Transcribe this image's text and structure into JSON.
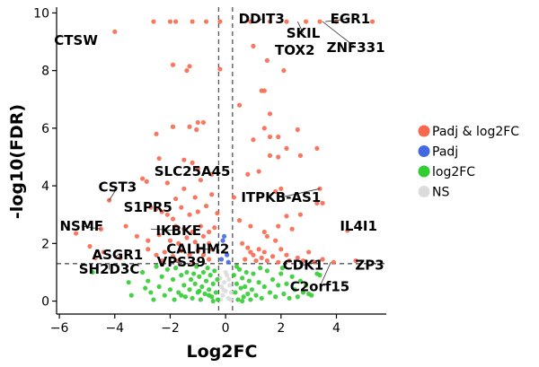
{
  "chart_data": {
    "type": "scatter",
    "xlabel": "Log2FC",
    "ylabel": "-log10(FDR)",
    "xlim": [
      -6.1,
      5.8
    ],
    "ylim": [
      -0.45,
      10.2
    ],
    "xticks": [
      -6,
      -4,
      -2,
      0,
      2,
      4
    ],
    "yticks": [
      0,
      2,
      4,
      6,
      8,
      10
    ],
    "tick_labels_x": [
      "−6",
      "−4",
      "−2",
      "0",
      "2",
      "4"
    ],
    "tick_labels_y": [
      "0",
      "2",
      "4",
      "6",
      "8",
      "10"
    ],
    "thresholds": {
      "log2fc": [
        -0.25,
        0.25
      ],
      "fdr": 1.3
    },
    "legend": {
      "placement": "right",
      "entries": [
        {
          "name": "Padj & log2FC",
          "color": "#F8684F"
        },
        {
          "name": "Padj",
          "color": "#4169E1"
        },
        {
          "name": "log2FC",
          "color": "#32CD32"
        },
        {
          "name": "NS",
          "color": "#DCDCDC"
        }
      ]
    },
    "series": [
      {
        "name": "Padj & log2FC",
        "color": "#F8684F",
        "points": [
          [
            -4.0,
            9.35
          ],
          [
            -2.6,
            9.7
          ],
          [
            -2.0,
            9.7
          ],
          [
            -1.8,
            9.7
          ],
          [
            -1.2,
            9.7
          ],
          [
            -0.7,
            9.7
          ],
          [
            -0.2,
            9.7
          ],
          [
            0.9,
            9.7
          ],
          [
            1.6,
            9.7
          ],
          [
            2.2,
            9.7
          ],
          [
            2.9,
            9.7
          ],
          [
            3.4,
            9.7
          ],
          [
            4.0,
            9.7
          ],
          [
            5.3,
            9.7
          ],
          [
            1.0,
            8.85
          ],
          [
            1.5,
            8.35
          ],
          [
            2.1,
            8.0
          ],
          [
            -1.9,
            8.2
          ],
          [
            -1.3,
            8.15
          ],
          [
            -1.4,
            8.0
          ],
          [
            -0.2,
            8.05
          ],
          [
            1.3,
            7.3
          ],
          [
            1.4,
            7.3
          ],
          [
            0.5,
            6.8
          ],
          [
            1.6,
            6.5
          ],
          [
            -1.0,
            6.2
          ],
          [
            -0.8,
            6.2
          ],
          [
            -1.9,
            6.05
          ],
          [
            -1.3,
            6.05
          ],
          [
            -1.05,
            5.95
          ],
          [
            -2.5,
            5.8
          ],
          [
            1.4,
            6.0
          ],
          [
            1.6,
            5.7
          ],
          [
            1.9,
            5.7
          ],
          [
            2.6,
            5.95
          ],
          [
            1.0,
            5.6
          ],
          [
            2.2,
            5.3
          ],
          [
            3.3,
            5.3
          ],
          [
            -2.4,
            4.95
          ],
          [
            -1.5,
            4.9
          ],
          [
            -1.2,
            4.8
          ],
          [
            -1.0,
            4.6
          ],
          [
            -0.9,
            4.2
          ],
          [
            -0.5,
            4.4
          ],
          [
            0.8,
            4.4
          ],
          [
            1.2,
            4.5
          ],
          [
            1.6,
            5.05
          ],
          [
            1.9,
            5.0
          ],
          [
            2.7,
            5.05
          ],
          [
            -3.0,
            4.25
          ],
          [
            -2.85,
            4.15
          ],
          [
            -2.1,
            4.1
          ],
          [
            -1.5,
            3.9
          ],
          [
            -1.1,
            3.6
          ],
          [
            -1.8,
            3.55
          ],
          [
            -0.5,
            3.7
          ],
          [
            0.3,
            3.6
          ],
          [
            1.8,
            3.8
          ],
          [
            2.0,
            3.9
          ],
          [
            3.4,
            3.9
          ],
          [
            3.3,
            3.4
          ],
          [
            3.5,
            3.4
          ],
          [
            -4.2,
            3.5
          ],
          [
            -2.7,
            3.25
          ],
          [
            -2.5,
            3.2
          ],
          [
            -2.3,
            3.1
          ],
          [
            -2.1,
            3.0
          ],
          [
            -1.9,
            2.85
          ],
          [
            -1.6,
            3.25
          ],
          [
            -1.3,
            3.0
          ],
          [
            -1.0,
            3.1
          ],
          [
            -0.7,
            3.3
          ],
          [
            -0.3,
            3.05
          ],
          [
            -1.8,
            2.6
          ],
          [
            -1.5,
            2.5
          ],
          [
            -1.2,
            2.4
          ],
          [
            -0.9,
            2.6
          ],
          [
            -0.6,
            2.4
          ],
          [
            -0.4,
            2.55
          ],
          [
            0.5,
            2.8
          ],
          [
            0.9,
            2.6
          ],
          [
            1.4,
            2.4
          ],
          [
            1.9,
            2.6
          ],
          [
            2.2,
            2.95
          ],
          [
            2.4,
            2.5
          ],
          [
            2.7,
            3.0
          ],
          [
            1.5,
            2.25
          ],
          [
            -4.5,
            2.5
          ],
          [
            -5.4,
            2.35
          ],
          [
            -3.6,
            2.6
          ],
          [
            -3.2,
            2.25
          ],
          [
            -2.8,
            2.1
          ],
          [
            -2.4,
            2.3
          ],
          [
            -2.0,
            2.1
          ],
          [
            -1.7,
            2.0
          ],
          [
            -1.4,
            2.2
          ],
          [
            -1.1,
            2.05
          ],
          [
            -0.8,
            2.25
          ],
          [
            -0.6,
            2.0
          ],
          [
            -0.5,
            1.8
          ],
          [
            -2.8,
            1.8
          ],
          [
            -2.5,
            1.6
          ],
          [
            -2.2,
            1.7
          ],
          [
            -1.9,
            1.55
          ],
          [
            -1.6,
            1.75
          ],
          [
            -1.3,
            1.6
          ],
          [
            -1.0,
            1.75
          ],
          [
            -0.8,
            1.6
          ],
          [
            -0.6,
            1.45
          ],
          [
            -2.3,
            1.4
          ],
          [
            -1.7,
            1.4
          ],
          [
            -1.2,
            1.35
          ],
          [
            -3.8,
            1.5
          ],
          [
            -4.4,
            1.7
          ],
          [
            -4.9,
            1.9
          ],
          [
            -4.7,
            1.5
          ],
          [
            0.6,
            2.0
          ],
          [
            0.8,
            1.85
          ],
          [
            0.9,
            1.7
          ],
          [
            1.0,
            1.6
          ],
          [
            1.2,
            1.8
          ],
          [
            1.3,
            1.5
          ],
          [
            1.4,
            1.7
          ],
          [
            1.5,
            1.4
          ],
          [
            1.7,
            1.55
          ],
          [
            1.8,
            2.1
          ],
          [
            2.0,
            1.8
          ],
          [
            2.2,
            1.6
          ],
          [
            2.3,
            1.4
          ],
          [
            0.7,
            1.45
          ],
          [
            1.1,
            1.4
          ],
          [
            1.9,
            1.35
          ],
          [
            2.6,
            1.5
          ],
          [
            2.8,
            1.4
          ],
          [
            3.0,
            1.7
          ],
          [
            3.2,
            1.35
          ],
          [
            3.5,
            1.45
          ],
          [
            3.9,
            1.35
          ],
          [
            4.4,
            2.45
          ],
          [
            4.7,
            1.4
          ]
        ]
      },
      {
        "name": "Padj",
        "color": "#4169E1",
        "points": [
          [
            -0.05,
            2.25
          ],
          [
            -0.1,
            2.1
          ],
          [
            0.05,
            1.6
          ],
          [
            -0.15,
            1.45
          ],
          [
            0.1,
            1.35
          ]
        ]
      },
      {
        "name": "log2FC",
        "color": "#32CD32",
        "points": [
          [
            -4.8,
            1.0
          ],
          [
            -3.5,
            0.65
          ],
          [
            -3.4,
            0.2
          ],
          [
            -3.0,
            1.0
          ],
          [
            -2.8,
            0.7
          ],
          [
            -2.7,
            0.3
          ],
          [
            -2.5,
            1.2
          ],
          [
            -2.4,
            0.5
          ],
          [
            -2.3,
            0.85
          ],
          [
            -2.2,
            0.2
          ],
          [
            -2.1,
            1.1
          ],
          [
            -2.0,
            0.4
          ],
          [
            -1.9,
            0.75
          ],
          [
            -1.8,
            1.15
          ],
          [
            -1.7,
            0.3
          ],
          [
            -1.6,
            0.9
          ],
          [
            -1.5,
            0.55
          ],
          [
            -1.45,
            0.15
          ],
          [
            -1.4,
            1.0
          ],
          [
            -1.3,
            0.4
          ],
          [
            -1.25,
            0.75
          ],
          [
            -1.2,
            0.1
          ],
          [
            -1.1,
            0.6
          ],
          [
            -1.05,
            1.2
          ],
          [
            -1.0,
            0.3
          ],
          [
            -0.95,
            0.85
          ],
          [
            -0.9,
            0.05
          ],
          [
            -0.85,
            0.5
          ],
          [
            -0.8,
            1.0
          ],
          [
            -0.75,
            0.25
          ],
          [
            -0.7,
            0.7
          ],
          [
            -0.65,
            1.15
          ],
          [
            -0.6,
            0.4
          ],
          [
            -0.55,
            0.9
          ],
          [
            -0.5,
            0.15
          ],
          [
            -0.45,
            0.6
          ],
          [
            -0.4,
            1.05
          ],
          [
            -0.35,
            0.3
          ],
          [
            -0.3,
            0.75
          ],
          [
            -0.28,
            0.05
          ],
          [
            -2.6,
            0.05
          ],
          [
            -2.9,
            0.45
          ],
          [
            -1.85,
            0.05
          ],
          [
            -1.15,
            0.95
          ],
          [
            -0.95,
            0.35
          ],
          [
            -0.6,
            0.2
          ],
          [
            -0.45,
            0.0
          ],
          [
            -1.6,
            0.2
          ],
          [
            0.3,
            0.9
          ],
          [
            0.35,
            0.3
          ],
          [
            0.4,
            0.6
          ],
          [
            0.45,
            0.05
          ],
          [
            0.5,
            1.1
          ],
          [
            0.55,
            0.45
          ],
          [
            0.6,
            0.8
          ],
          [
            0.65,
            0.15
          ],
          [
            0.7,
            0.5
          ],
          [
            0.75,
            1.0
          ],
          [
            0.8,
            0.25
          ],
          [
            0.85,
            0.7
          ],
          [
            0.9,
            0.05
          ],
          [
            0.95,
            0.4
          ],
          [
            1.0,
            0.95
          ],
          [
            1.1,
            0.2
          ],
          [
            1.2,
            0.65
          ],
          [
            1.3,
            0.1
          ],
          [
            1.4,
            0.5
          ],
          [
            1.5,
            1.05
          ],
          [
            1.6,
            0.3
          ],
          [
            1.7,
            0.75
          ],
          [
            1.8,
            0.15
          ],
          [
            1.9,
            0.55
          ],
          [
            2.0,
            0.95
          ],
          [
            2.1,
            0.25
          ],
          [
            2.2,
            0.6
          ],
          [
            2.3,
            0.1
          ],
          [
            2.4,
            0.85
          ],
          [
            2.5,
            0.4
          ],
          [
            2.6,
            0.15
          ],
          [
            2.7,
            0.7
          ],
          [
            2.8,
            0.3
          ],
          [
            2.9,
            0.55
          ],
          [
            3.0,
            0.25
          ],
          [
            3.1,
            0.2
          ],
          [
            3.3,
            0.95
          ],
          [
            3.4,
            0.9
          ],
          [
            1.25,
            1.15
          ],
          [
            0.4,
            1.2
          ],
          [
            2.05,
            1.15
          ],
          [
            0.6,
            0.0
          ]
        ]
      },
      {
        "name": "NS",
        "color": "#DCDCDC",
        "points": [
          [
            -0.2,
            0.8
          ],
          [
            -0.15,
            0.5
          ],
          [
            -0.1,
            0.2
          ],
          [
            -0.05,
            0.65
          ],
          [
            0.0,
            0.35
          ],
          [
            0.05,
            0.9
          ],
          [
            0.1,
            0.1
          ],
          [
            0.15,
            0.55
          ],
          [
            0.2,
            0.3
          ],
          [
            -0.18,
            0.05
          ],
          [
            0.0,
            1.0
          ],
          [
            0.12,
            0.75
          ],
          [
            -0.08,
            0.4
          ],
          [
            0.18,
            0.05
          ]
        ]
      }
    ],
    "annotations": [
      {
        "text": "CTSW",
        "x": -4.0,
        "y": 9.35,
        "label_x": -5.4,
        "label_y": 9.05,
        "leader": false
      },
      {
        "text": "DDIT3",
        "x": 1.2,
        "y": 9.7,
        "label_x": 1.3,
        "label_y": 9.8,
        "leader": true
      },
      {
        "text": "SKIL",
        "x": 2.6,
        "y": 9.7,
        "label_x": 2.8,
        "label_y": 9.3,
        "leader": true
      },
      {
        "text": "EGR1",
        "x": 3.6,
        "y": 9.7,
        "label_x": 4.5,
        "label_y": 9.8,
        "leader": true
      },
      {
        "text": "TOX2",
        "x": 1.8,
        "y": 9.5,
        "label_x": 2.5,
        "label_y": 8.7,
        "leader": false
      },
      {
        "text": "ZNF331",
        "x": 3.5,
        "y": 9.7,
        "label_x": 4.7,
        "label_y": 8.8,
        "leader": true
      },
      {
        "text": "SLC25A45",
        "x": -1.0,
        "y": 4.6,
        "label_x": -1.2,
        "label_y": 4.5,
        "leader": false
      },
      {
        "text": "CST3",
        "x": -4.2,
        "y": 3.5,
        "label_x": -3.9,
        "label_y": 3.95,
        "leader": true
      },
      {
        "text": "ITPKB-AS1",
        "x": 3.4,
        "y": 3.9,
        "label_x": 2.0,
        "label_y": 3.6,
        "leader": true
      },
      {
        "text": "S1PR5",
        "x": -3.0,
        "y": 3.0,
        "label_x": -2.8,
        "label_y": 3.25,
        "leader": false
      },
      {
        "text": "NSMF",
        "x": -4.5,
        "y": 2.5,
        "label_x": -5.2,
        "label_y": 2.6,
        "leader": true
      },
      {
        "text": "IKBKE",
        "x": -2.7,
        "y": 2.5,
        "label_x": -1.7,
        "label_y": 2.45,
        "leader": true
      },
      {
        "text": "IL4I1",
        "x": 4.4,
        "y": 2.45,
        "label_x": 4.8,
        "label_y": 2.6,
        "leader": false
      },
      {
        "text": "CALHM2",
        "x": -0.5,
        "y": 1.8,
        "label_x": -1.0,
        "label_y": 1.8,
        "leader": true
      },
      {
        "text": "ASGR1",
        "x": -4.0,
        "y": 1.5,
        "label_x": -3.9,
        "label_y": 1.6,
        "leader": true
      },
      {
        "text": "VPS39",
        "x": -1.8,
        "y": 1.35,
        "label_x": -1.6,
        "label_y": 1.35,
        "leader": true
      },
      {
        "text": "SH2D3C",
        "x": -4.2,
        "y": 1.3,
        "label_x": -4.2,
        "label_y": 1.1,
        "leader": true
      },
      {
        "text": "CDK1",
        "x": 3.3,
        "y": 1.35,
        "label_x": 2.8,
        "label_y": 1.25,
        "leader": true
      },
      {
        "text": "ZP3",
        "x": 4.7,
        "y": 1.4,
        "label_x": 5.2,
        "label_y": 1.25,
        "leader": false
      },
      {
        "text": "C2orf15",
        "x": 3.8,
        "y": 1.35,
        "label_x": 3.4,
        "label_y": 0.5,
        "leader": true
      }
    ]
  }
}
